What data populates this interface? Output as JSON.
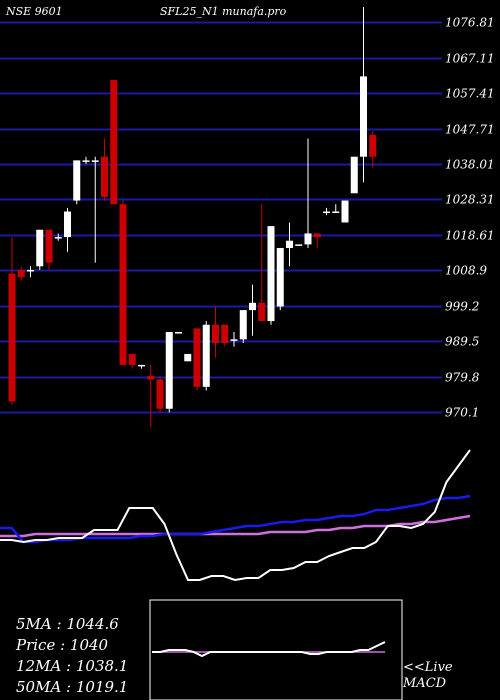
{
  "header": {
    "left_label": "NSE 9601",
    "center_label": "SFL25_N1 munafa.pro"
  },
  "stats": {
    "ma5": "5MA : 1044.6",
    "price": "Price  : 1040",
    "ma12": "12MA : 1038.1",
    "ma50": "50MA : 1019.1"
  },
  "macd_label": {
    "line1": "<<Live",
    "line2": "MACD"
  },
  "colors": {
    "background": "#000000",
    "grid": "#1a1aa6",
    "up": "#ffffff",
    "down": "#cc0000",
    "white_line": "#ffffff",
    "blue_line": "#1a1af0",
    "magenta_line": "#d070e0",
    "macd_panel_border": "#ffffff",
    "macd_signal": "#d070e0"
  },
  "chart_data": {
    "type": "candlestick",
    "y_ticks": [
      "1076.81",
      "1067.11",
      "1057.41",
      "1047.71",
      "1038.01",
      "1028.31",
      "1018.61",
      "1008.9",
      "999.2",
      "989.5",
      "979.8",
      "970.1"
    ],
    "ylim": [
      966,
      1081
    ],
    "candles": [
      {
        "o": 1008,
        "h": 1018,
        "l": 972,
        "c": 973
      },
      {
        "o": 1009,
        "h": 1010,
        "l": 1006,
        "c": 1007
      },
      {
        "o": 1009,
        "h": 1010,
        "l": 1007,
        "c": 1009
      },
      {
        "o": 1010,
        "h": 1020,
        "l": 1009,
        "c": 1020
      },
      {
        "o": 1020,
        "h": 1020,
        "l": 1009,
        "c": 1011
      },
      {
        "o": 1018,
        "h": 1019,
        "l": 1017,
        "c": 1018
      },
      {
        "o": 1018,
        "h": 1026,
        "l": 1014,
        "c": 1025
      },
      {
        "o": 1028,
        "h": 1039,
        "l": 1027,
        "c": 1039
      },
      {
        "o": 1039,
        "h": 1040,
        "l": 1038,
        "c": 1039
      },
      {
        "o": 1039,
        "h": 1040,
        "l": 1011,
        "c": 1039
      },
      {
        "o": 1040,
        "h": 1045,
        "l": 1028,
        "c": 1029
      },
      {
        "o": 1061,
        "h": 1061,
        "l": 1027,
        "c": 1027
      },
      {
        "o": 1027,
        "h": 1028,
        "l": 983,
        "c": 983
      },
      {
        "o": 986,
        "h": 986,
        "l": 982,
        "c": 983
      },
      {
        "o": 983,
        "h": 983,
        "l": 982,
        "c": 983
      },
      {
        "o": 980,
        "h": 983,
        "l": 966,
        "c": 979
      },
      {
        "o": 979,
        "h": 980,
        "l": 970,
        "c": 971
      },
      {
        "o": 971,
        "h": 992,
        "l": 970,
        "c": 992
      },
      {
        "o": 992,
        "h": 992,
        "l": 992,
        "c": 992
      },
      {
        "o": 984,
        "h": 986,
        "l": 984,
        "c": 986
      },
      {
        "o": 993,
        "h": 993,
        "l": 976,
        "c": 977
      },
      {
        "o": 977,
        "h": 995,
        "l": 976,
        "c": 994
      },
      {
        "o": 994,
        "h": 999,
        "l": 985,
        "c": 989
      },
      {
        "o": 994,
        "h": 994,
        "l": 988,
        "c": 989
      },
      {
        "o": 990,
        "h": 992,
        "l": 988,
        "c": 990
      },
      {
        "o": 990,
        "h": 998,
        "l": 989,
        "c": 998
      },
      {
        "o": 998,
        "h": 1005,
        "l": 991,
        "c": 1000
      },
      {
        "o": 1000,
        "h": 1027,
        "l": 996,
        "c": 995
      },
      {
        "o": 995,
        "h": 1021,
        "l": 994,
        "c": 1021
      },
      {
        "o": 999,
        "h": 1015,
        "l": 998,
        "c": 1015
      },
      {
        "o": 1015,
        "h": 1022,
        "l": 1010,
        "c": 1017
      },
      {
        "o": 1016,
        "h": 1016,
        "l": 1016,
        "c": 1016
      },
      {
        "o": 1016,
        "h": 1045,
        "l": 1015,
        "c": 1019
      },
      {
        "o": 1019,
        "h": 1019,
        "l": 1015,
        "c": 1018
      },
      {
        "o": 1025,
        "h": 1026,
        "l": 1024,
        "c": 1025
      },
      {
        "o": 1025,
        "h": 1027,
        "l": 1025,
        "c": 1025
      },
      {
        "o": 1022,
        "h": 1028,
        "l": 1022,
        "c": 1028
      },
      {
        "o": 1030,
        "h": 1040,
        "l": 1030,
        "c": 1040
      },
      {
        "o": 1040,
        "h": 1081,
        "l": 1033,
        "c": 1062
      },
      {
        "o": 1046,
        "h": 1047,
        "l": 1037,
        "c": 1040
      }
    ],
    "ma_lines": {
      "white_5": [
        1000,
        1000,
        999,
        1000,
        1000,
        1001,
        1001,
        1001,
        1005,
        1005,
        1005,
        1016,
        1016,
        1016,
        1008,
        993,
        980,
        980,
        982,
        982,
        980,
        981,
        981,
        985,
        985,
        986,
        989,
        989,
        992,
        994,
        996,
        996,
        999,
        1007,
        1007,
        1006,
        1008,
        1014,
        1029,
        1037,
        1045
      ],
      "blue_12": [
        1006,
        1006,
        999,
        999,
        1000,
        1000,
        1000,
        1001,
        1001,
        1001,
        1001,
        1001,
        1002,
        1002,
        1003,
        1003,
        1003,
        1003,
        1004,
        1005,
        1006,
        1007,
        1007,
        1008,
        1009,
        1009,
        1010,
        1010,
        1011,
        1012,
        1012,
        1013,
        1015,
        1015,
        1016,
        1017,
        1018,
        1020,
        1021,
        1021,
        1022
      ],
      "magenta_50": [
        1002,
        1002,
        1002,
        1003,
        1003,
        1003,
        1003,
        1003,
        1003,
        1003,
        1003,
        1003,
        1003,
        1003,
        1003,
        1003,
        1003,
        1003,
        1003,
        1003,
        1003,
        1003,
        1003,
        1004,
        1004,
        1004,
        1004,
        1005,
        1005,
        1006,
        1006,
        1007,
        1007,
        1007,
        1008,
        1008,
        1009,
        1009,
        1010,
        1011,
        1012
      ]
    },
    "macd": {
      "main": [
        0,
        0,
        1,
        1,
        1,
        0,
        -2,
        0,
        0,
        0,
        0,
        0,
        0,
        0,
        0,
        0,
        0,
        0,
        0,
        -1,
        -1,
        0,
        0,
        0,
        0,
        1,
        1,
        3,
        5
      ],
      "signal": [
        0,
        0,
        0,
        0,
        0,
        0,
        0,
        0,
        0,
        0,
        0,
        0,
        0,
        0,
        0,
        0,
        0,
        0,
        0,
        0,
        0,
        0,
        0,
        0,
        0,
        0,
        0,
        0,
        0
      ]
    }
  }
}
